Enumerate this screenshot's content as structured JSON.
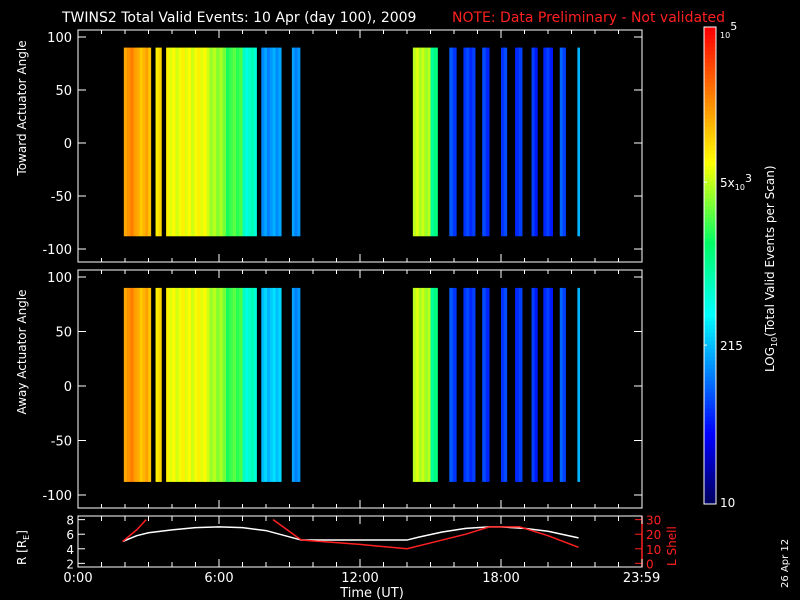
{
  "title": "TWINS2  Total Valid Events: 10 Apr (day 100), 2009",
  "note": "NOTE: Data Preliminary - Not validated",
  "date_stamp": "26 Apr 12",
  "colors": {
    "title": "#ffffff",
    "note": "#ff2020",
    "lshell": "#ff2020",
    "r": "#ffffff",
    "background": "#000000"
  },
  "chart_data": [
    {
      "type": "heatmap",
      "panel": "toward",
      "ylabel": "Toward Actuator Angle",
      "ylim": [
        -110,
        105
      ],
      "yticks": [
        "100",
        "50",
        "0",
        "-50",
        "-100"
      ],
      "xlim_hours": [
        0,
        24
      ],
      "angle_range": [
        -88,
        90
      ],
      "strips_hours_log10": [
        [
          1.95,
          2.5,
          4.35
        ],
        [
          2.5,
          3.1,
          4.2
        ],
        [
          3.3,
          3.55,
          4.0
        ],
        [
          3.75,
          5.6,
          3.85
        ],
        [
          5.6,
          6.3,
          3.6
        ],
        [
          6.3,
          7.0,
          3.35
        ],
        [
          7.0,
          7.6,
          2.8
        ],
        [
          7.8,
          8.65,
          2.2
        ],
        [
          9.1,
          9.45,
          2.15
        ],
        [
          14.25,
          15.0,
          3.7
        ],
        [
          15.0,
          15.3,
          3.1
        ],
        [
          15.8,
          16.1,
          1.9
        ],
        [
          16.4,
          16.9,
          1.85
        ],
        [
          17.2,
          17.5,
          1.8
        ],
        [
          18.0,
          18.25,
          1.8
        ],
        [
          18.6,
          18.9,
          1.85
        ],
        [
          19.3,
          19.55,
          1.8
        ],
        [
          19.8,
          20.2,
          1.8
        ],
        [
          20.5,
          20.75,
          1.9
        ],
        [
          21.25,
          21.35,
          2.3
        ]
      ]
    },
    {
      "type": "heatmap",
      "panel": "away",
      "ylabel": "Away Actuator Angle",
      "ylim": [
        -110,
        105
      ],
      "yticks": [
        "100",
        "50",
        "0",
        "-50",
        "-100"
      ],
      "xlim_hours": [
        0,
        24
      ],
      "angle_range": [
        -88,
        90
      ],
      "strips_hours_log10": [
        [
          1.95,
          2.5,
          4.35
        ],
        [
          2.5,
          3.1,
          4.2
        ],
        [
          3.3,
          3.55,
          4.0
        ],
        [
          3.75,
          5.6,
          3.85
        ],
        [
          5.6,
          6.3,
          3.6
        ],
        [
          6.3,
          7.0,
          3.35
        ],
        [
          7.0,
          7.6,
          2.8
        ],
        [
          7.8,
          8.65,
          2.4
        ],
        [
          9.1,
          9.45,
          2.15
        ],
        [
          14.25,
          15.0,
          3.7
        ],
        [
          15.0,
          15.3,
          3.1
        ],
        [
          15.8,
          16.1,
          1.9
        ],
        [
          16.4,
          16.9,
          1.85
        ],
        [
          17.2,
          17.5,
          1.8
        ],
        [
          18.0,
          18.25,
          1.8
        ],
        [
          18.6,
          18.9,
          1.85
        ],
        [
          19.3,
          19.55,
          1.8
        ],
        [
          19.8,
          20.2,
          1.8
        ],
        [
          20.5,
          20.75,
          1.9
        ],
        [
          21.25,
          21.35,
          2.3
        ]
      ]
    },
    {
      "type": "line",
      "panel": "orbit",
      "ylabel": "R [R",
      "ylabel_sub": "E",
      "ylabel_end": "]",
      "ylim": [
        1.5,
        8.5
      ],
      "yticks": [
        "2",
        "4",
        "6",
        "8"
      ],
      "y2label": "L Shell",
      "y2lim": [
        -2.5,
        32.5
      ],
      "y2ticks": [
        "0",
        "10",
        "20",
        "30"
      ],
      "xlabel": "Time (UT)",
      "xticks": [
        "0:00",
        "6:00",
        "12:00",
        "18:00",
        "23:59"
      ],
      "series": [
        {
          "axis": "R",
          "color": "#ffffff",
          "x": [
            1.9,
            2.5,
            3.0,
            4.0,
            5.0,
            6.0,
            7.0,
            8.0,
            9.5,
            14.0,
            14.5,
            15.5,
            16.5,
            17.5,
            18.0,
            19.0,
            20.0,
            21.3
          ],
          "y": [
            5.0,
            5.8,
            6.2,
            6.6,
            6.9,
            7.0,
            6.9,
            6.5,
            5.2,
            5.2,
            5.6,
            6.3,
            6.8,
            7.0,
            7.0,
            6.8,
            6.4,
            5.5
          ]
        },
        {
          "axis": "L",
          "color": "#ff2020",
          "x": [
            1.9,
            2.5,
            2.9
          ],
          "y": [
            15,
            23,
            30
          ]
        },
        {
          "axis": "L",
          "color": "#ff2020",
          "x": [
            8.3,
            9.5,
            12.0,
            14.0,
            15.0,
            16.5,
            17.5,
            18.8,
            20.0,
            21.3
          ],
          "y": [
            30,
            16,
            13,
            10,
            14,
            20,
            25,
            25,
            19,
            11
          ]
        }
      ]
    }
  ],
  "colorbar": {
    "label_main": "LOG",
    "label_sub": "10",
    "label_rest": "(Total Valid Events per Scan)",
    "scale": "log",
    "range": [
      10,
      100000
    ],
    "ticks": [
      {
        "value": 100000,
        "base": "10",
        "exp": "5",
        "prefix": ""
      },
      {
        "value": 5000,
        "base": "10",
        "exp": "3",
        "prefix": "5x"
      },
      {
        "value": 215,
        "text": "215"
      },
      {
        "value": 10,
        "text": "10"
      }
    ]
  }
}
